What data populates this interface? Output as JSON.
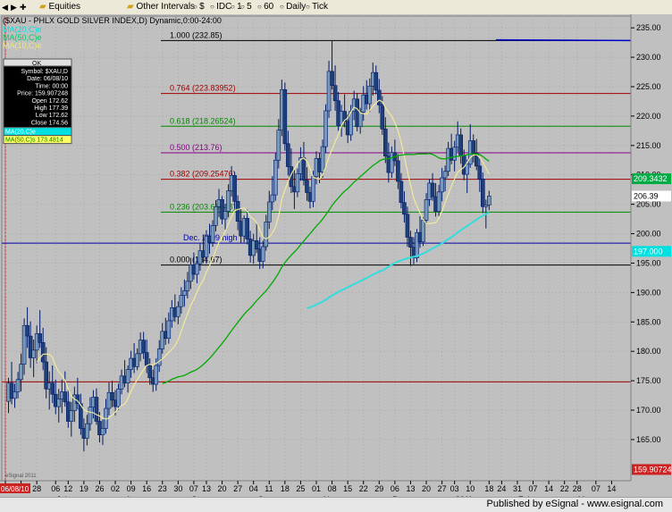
{
  "toolbar": {
    "items": [
      {
        "icon": "folder-icon",
        "label": "Equities"
      },
      {
        "icon": "folder-icon",
        "label": "Other Intervals"
      },
      {
        "icon": "",
        "label": "$"
      },
      {
        "icon": "",
        "label": "IDC"
      },
      {
        "icon": "",
        "label": "1"
      },
      {
        "icon": "",
        "label": "5"
      },
      {
        "icon": "",
        "label": "60"
      },
      {
        "icon": "",
        "label": "Daily"
      },
      {
        "icon": "",
        "label": "Tick"
      }
    ]
  },
  "chart_title": "($XAU - PHLX GOLD SILVER INDEX,D) Dynamic,0:00-24:00",
  "legend": [
    {
      "label": "MA(20,C)e",
      "color": "#00e0e0"
    },
    {
      "label": "MA(50,C)e",
      "color": "#00cc66"
    },
    {
      "label": "MA(10,C)e",
      "color": "#e8e880"
    }
  ],
  "info_box": {
    "header": "OK",
    "rows": [
      "Symbol: $XAU,D",
      "Date: 06/08/10",
      "Time: 00:00",
      "Price: 159.907248",
      "Open 172.62",
      "High 177.39",
      "Low 172.62",
      "Close 174.56"
    ],
    "ma_rows": [
      {
        "label": "MA(20,C)e",
        "color": "#00e0e0"
      },
      {
        "label": "MA(50,C)s 173.4814",
        "color": "#008800"
      }
    ]
  },
  "fib_levels": [
    {
      "label": "1.000 (232.85)",
      "value": 232.85,
      "color": "#000000"
    },
    {
      "label": "0.764 (223.83952)",
      "value": 223.84,
      "color": "#a00000"
    },
    {
      "label": "0.618 (218.26524)",
      "value": 218.27,
      "color": "#008800"
    },
    {
      "label": "0.500 (213.76)",
      "value": 213.76,
      "color": "#880088"
    },
    {
      "label": "0.382 (209.25476)",
      "value": 209.25,
      "color": "#a00000"
    },
    {
      "label": "0.236 (203.68048)",
      "value": 203.68,
      "color": "#008800"
    },
    {
      "label": "Dec. 2009 high",
      "value": 198.4,
      "color": "#0000aa"
    },
    {
      "label": "0.000 (194.67)",
      "value": 194.67,
      "color": "#000000"
    }
  ],
  "ref_line": {
    "value": 174.8,
    "color": "#a00000"
  },
  "right_tags": [
    {
      "label": "209.3432",
      "value": 209.34,
      "bg": "#00aa44",
      "fg": "#ffffff"
    },
    {
      "label": "206.39",
      "value": 206.39,
      "bg": "#ffffff",
      "fg": "#000000"
    },
    {
      "label": "197.000",
      "value": 197.0,
      "bg": "#00e0e0",
      "fg": "#ffffff"
    },
    {
      "label": "159.907248",
      "value": 159.907248,
      "bg": "#cc2222",
      "fg": "#ffffff"
    }
  ],
  "date_tag": "06/08/10",
  "watermark": "eSignal 2011",
  "footer": "Published by eSignal - www.esignal.com",
  "chart_data": {
    "type": "candlestick",
    "title": "$XAU - PHLX GOLD SILVER INDEX",
    "ylim": [
      158,
      237
    ],
    "yticks": [
      165,
      170,
      175,
      180,
      185,
      190,
      195,
      200,
      205,
      210,
      215,
      220,
      225,
      230,
      235
    ],
    "xlim": [
      0,
      198
    ],
    "x_ticks": [
      {
        "label": "14",
        "x": 0
      },
      {
        "label": "21",
        "x": 5
      },
      {
        "label": "28",
        "x": 10
      },
      {
        "label": "06",
        "x": 16
      },
      {
        "label": "12",
        "x": 20
      },
      {
        "label": "19",
        "x": 25
      },
      {
        "label": "26",
        "x": 30
      },
      {
        "label": "02",
        "x": 35
      },
      {
        "label": "09",
        "x": 40
      },
      {
        "label": "16",
        "x": 45
      },
      {
        "label": "23",
        "x": 50
      },
      {
        "label": "30",
        "x": 55
      },
      {
        "label": "07",
        "x": 60
      },
      {
        "label": "13",
        "x": 64
      },
      {
        "label": "20",
        "x": 69
      },
      {
        "label": "27",
        "x": 74
      },
      {
        "label": "04",
        "x": 79
      },
      {
        "label": "11",
        "x": 84
      },
      {
        "label": "18",
        "x": 89
      },
      {
        "label": "25",
        "x": 94
      },
      {
        "label": "01",
        "x": 99
      },
      {
        "label": "08",
        "x": 104
      },
      {
        "label": "15",
        "x": 109
      },
      {
        "label": "22",
        "x": 114
      },
      {
        "label": "29",
        "x": 119
      },
      {
        "label": "06",
        "x": 124
      },
      {
        "label": "13",
        "x": 129
      },
      {
        "label": "20",
        "x": 134
      },
      {
        "label": "27",
        "x": 139
      },
      {
        "label": "03",
        "x": 143
      },
      {
        "label": "10",
        "x": 148
      },
      {
        "label": "18",
        "x": 154
      },
      {
        "label": "24",
        "x": 158
      },
      {
        "label": "31",
        "x": 163
      },
      {
        "label": "07",
        "x": 168
      },
      {
        "label": "14",
        "x": 173
      },
      {
        "label": "22",
        "x": 178
      },
      {
        "label": "28",
        "x": 182
      },
      {
        "label": "07",
        "x": 188
      },
      {
        "label": "14",
        "x": 193
      }
    ],
    "months": [
      {
        "label": "Jul",
        "x": 18
      },
      {
        "label": "Aug",
        "x": 40
      },
      {
        "label": "Sep",
        "x": 61
      },
      {
        "label": "Oct",
        "x": 82
      },
      {
        "label": "Nov",
        "x": 103
      },
      {
        "label": "Dec",
        "x": 125
      },
      {
        "label": "2011",
        "x": 145
      },
      {
        "label": "Feb",
        "x": 165
      },
      {
        "label": "Mar",
        "x": 184
      }
    ],
    "ohlc": [
      [
        171.5,
        175.5,
        169.5,
        174.6
      ],
      [
        174.6,
        178.2,
        171.0,
        172.0
      ],
      [
        172.0,
        174.5,
        170.4,
        173.1
      ],
      [
        173.1,
        176.5,
        172.0,
        175.2
      ],
      [
        175.2,
        179.6,
        173.2,
        177.8
      ],
      [
        177.8,
        185.6,
        176.0,
        184.4
      ],
      [
        184.4,
        187.5,
        180.6,
        182.6
      ],
      [
        182.6,
        185.1,
        177.2,
        178.9
      ],
      [
        178.9,
        182.0,
        175.6,
        180.2
      ],
      [
        180.2,
        184.4,
        178.0,
        183.0
      ],
      [
        183.0,
        187.0,
        180.6,
        181.5
      ],
      [
        181.5,
        184.0,
        176.8,
        178.2
      ],
      [
        178.2,
        180.7,
        172.0,
        173.6
      ],
      [
        173.6,
        176.6,
        170.1,
        174.6
      ],
      [
        174.6,
        177.6,
        171.2,
        172.7
      ],
      [
        172.7,
        175.2,
        169.3,
        170.6
      ],
      [
        170.6,
        173.6,
        167.9,
        171.9
      ],
      [
        171.9,
        175.2,
        169.5,
        173.1
      ],
      [
        173.1,
        176.6,
        170.6,
        171.4
      ],
      [
        171.4,
        173.5,
        167.0,
        168.1
      ],
      [
        168.1,
        171.4,
        165.5,
        169.9
      ],
      [
        169.9,
        174.0,
        168.0,
        172.6
      ],
      [
        172.6,
        175.5,
        170.1,
        171.1
      ],
      [
        171.1,
        172.8,
        165.8,
        166.9
      ],
      [
        166.9,
        168.6,
        163.0,
        165.2
      ],
      [
        165.2,
        169.2,
        164.0,
        167.7
      ],
      [
        167.7,
        172.2,
        166.5,
        170.5
      ],
      [
        170.5,
        173.4,
        168.6,
        172.2
      ],
      [
        172.2,
        173.7,
        167.5,
        168.1
      ],
      [
        168.1,
        169.7,
        164.5,
        165.8
      ],
      [
        165.8,
        168.4,
        164.1,
        166.9
      ],
      [
        166.9,
        171.9,
        166.0,
        170.3
      ],
      [
        170.3,
        174.7,
        169.1,
        173.0
      ],
      [
        173.0,
        175.0,
        170.5,
        171.7
      ],
      [
        171.7,
        173.4,
        169.1,
        170.6
      ],
      [
        170.6,
        174.5,
        170.0,
        173.6
      ],
      [
        173.6,
        176.9,
        172.7,
        175.8
      ],
      [
        175.8,
        178.5,
        173.9,
        174.6
      ],
      [
        174.6,
        177.6,
        173.0,
        176.9
      ],
      [
        176.9,
        180.1,
        175.5,
        178.8
      ],
      [
        178.8,
        181.4,
        176.3,
        177.4
      ],
      [
        177.4,
        180.5,
        176.8,
        179.6
      ],
      [
        179.6,
        183.2,
        178.3,
        181.9
      ],
      [
        181.9,
        183.3,
        178.7,
        179.8
      ],
      [
        179.8,
        182.0,
        176.3,
        177.6
      ],
      [
        177.6,
        178.8,
        174.3,
        175.5
      ],
      [
        175.5,
        176.9,
        173.1,
        174.4
      ],
      [
        174.4,
        178.8,
        173.3,
        177.6
      ],
      [
        177.6,
        181.9,
        176.5,
        180.4
      ],
      [
        180.4,
        184.8,
        179.6,
        183.4
      ],
      [
        183.4,
        185.7,
        181.1,
        182.2
      ],
      [
        182.2,
        186.6,
        181.3,
        185.2
      ],
      [
        185.2,
        188.7,
        184.0,
        187.4
      ],
      [
        187.4,
        189.7,
        185.0,
        185.9
      ],
      [
        185.9,
        188.5,
        184.6,
        187.6
      ],
      [
        187.6,
        190.9,
        186.4,
        189.5
      ],
      [
        189.5,
        192.2,
        187.6,
        190.3
      ],
      [
        190.3,
        193.5,
        189.0,
        191.9
      ],
      [
        191.9,
        195.9,
        190.6,
        194.7
      ],
      [
        194.7,
        196.8,
        192.2,
        193.1
      ],
      [
        193.1,
        196.0,
        191.6,
        194.9
      ],
      [
        194.9,
        198.3,
        193.7,
        197.1
      ],
      [
        197.1,
        199.8,
        195.0,
        196.0
      ],
      [
        196.0,
        200.6,
        194.9,
        199.6
      ],
      [
        199.6,
        201.7,
        196.6,
        198.5
      ],
      [
        198.5,
        202.3,
        197.8,
        201.4
      ],
      [
        201.4,
        205.7,
        200.4,
        204.6
      ],
      [
        204.6,
        207.6,
        202.8,
        205.8
      ],
      [
        205.8,
        206.4,
        201.6,
        202.5
      ],
      [
        202.5,
        205.1,
        200.7,
        203.8
      ],
      [
        203.8,
        208.4,
        202.8,
        207.3
      ],
      [
        207.3,
        211.5,
        206.3,
        209.9
      ],
      [
        209.9,
        210.5,
        204.2,
        205.5
      ],
      [
        205.5,
        206.5,
        200.6,
        202.1
      ],
      [
        202.1,
        204.2,
        198.4,
        199.6
      ],
      [
        199.6,
        203.1,
        198.5,
        202.6
      ],
      [
        202.6,
        204.1,
        198.2,
        199.1
      ],
      [
        199.1,
        200.5,
        195.1,
        196.3
      ],
      [
        196.3,
        200.0,
        194.9,
        198.8
      ],
      [
        198.8,
        201.8,
        196.7,
        197.4
      ],
      [
        197.4,
        199.4,
        194.0,
        195.3
      ],
      [
        195.3,
        198.8,
        194.1,
        197.8
      ],
      [
        197.8,
        203.2,
        197.1,
        202.0
      ],
      [
        202.0,
        207.3,
        200.8,
        205.4
      ],
      [
        205.4,
        209.8,
        204.0,
        206.6
      ],
      [
        206.6,
        213.7,
        205.6,
        212.5
      ],
      [
        212.5,
        219.5,
        211.1,
        217.6
      ],
      [
        217.6,
        226.2,
        216.6,
        224.5
      ],
      [
        224.5,
        225.7,
        214.1,
        215.3
      ],
      [
        215.3,
        217.5,
        209.9,
        211.4
      ],
      [
        211.4,
        214.5,
        206.9,
        208.0
      ],
      [
        208.0,
        210.8,
        204.2,
        207.1
      ],
      [
        207.1,
        211.1,
        206.2,
        210.2
      ],
      [
        210.2,
        214.7,
        209.0,
        212.9
      ],
      [
        212.9,
        215.6,
        208.2,
        209.1
      ],
      [
        209.1,
        211.3,
        205.6,
        207.0
      ],
      [
        207.0,
        208.0,
        204.3,
        205.5
      ],
      [
        205.5,
        210.7,
        204.5,
        209.7
      ],
      [
        209.7,
        214.0,
        208.4,
        212.8
      ],
      [
        212.8,
        213.7,
        208.6,
        210.5
      ],
      [
        210.5,
        216.0,
        209.5,
        214.8
      ],
      [
        214.8,
        222.0,
        213.7,
        220.9
      ],
      [
        220.9,
        229.4,
        219.7,
        227.6
      ],
      [
        227.6,
        232.9,
        224.5,
        225.2
      ],
      [
        225.2,
        228.6,
        220.9,
        222.6
      ],
      [
        222.6,
        224.1,
        217.5,
        218.4
      ],
      [
        218.4,
        221.9,
        216.5,
        220.8
      ],
      [
        220.8,
        223.7,
        218.1,
        219.1
      ],
      [
        219.1,
        220.3,
        215.4,
        216.8
      ],
      [
        216.8,
        221.9,
        215.8,
        220.8
      ],
      [
        220.8,
        224.3,
        219.3,
        222.9
      ],
      [
        222.9,
        223.9,
        217.4,
        218.2
      ],
      [
        218.2,
        221.4,
        217.0,
        220.7
      ],
      [
        220.7,
        225.1,
        219.2,
        223.6
      ],
      [
        223.6,
        226.1,
        221.1,
        222.1
      ],
      [
        222.1,
        226.4,
        220.7,
        225.1
      ],
      [
        225.1,
        229.1,
        223.5,
        227.4
      ],
      [
        227.4,
        228.6,
        223.7,
        224.4
      ],
      [
        224.4,
        226.3,
        220.5,
        221.9
      ],
      [
        221.9,
        223.4,
        216.8,
        217.8
      ],
      [
        217.8,
        219.8,
        212.0,
        213.2
      ],
      [
        213.2,
        215.5,
        208.7,
        210.4
      ],
      [
        210.4,
        214.8,
        209.5,
        213.8
      ],
      [
        213.8,
        216.0,
        211.5,
        212.4
      ],
      [
        212.4,
        213.5,
        207.6,
        208.9
      ],
      [
        208.9,
        210.3,
        204.3,
        205.3
      ],
      [
        205.3,
        207.2,
        201.9,
        203.3
      ],
      [
        203.3,
        204.6,
        197.8,
        199.4
      ],
      [
        199.4,
        200.5,
        194.5,
        197.7
      ],
      [
        197.7,
        199.4,
        194.8,
        195.9
      ],
      [
        195.9,
        200.8,
        195.2,
        200.2
      ],
      [
        200.2,
        203.0,
        197.6,
        198.6
      ],
      [
        198.6,
        202.8,
        197.9,
        202.3
      ],
      [
        202.3,
        206.9,
        201.7,
        205.8
      ],
      [
        205.8,
        209.3,
        204.7,
        208.6
      ],
      [
        208.6,
        210.3,
        205.6,
        206.3
      ],
      [
        206.3,
        208.6,
        202.9,
        203.8
      ],
      [
        203.8,
        208.3,
        203.0,
        207.1
      ],
      [
        207.1,
        211.2,
        205.5,
        209.5
      ],
      [
        209.5,
        211.6,
        207.2,
        210.6
      ],
      [
        210.6,
        215.6,
        209.8,
        214.5
      ],
      [
        214.5,
        217.0,
        211.8,
        212.5
      ],
      [
        212.5,
        215.8,
        210.6,
        214.7
      ],
      [
        214.7,
        219.1,
        213.9,
        216.8
      ],
      [
        216.8,
        217.9,
        211.9,
        213.2
      ],
      [
        213.2,
        214.3,
        209.1,
        210.1
      ],
      [
        210.1,
        212.6,
        206.9,
        211.8
      ],
      [
        211.8,
        218.6,
        211.2,
        215.8
      ],
      [
        215.8,
        216.9,
        212.1,
        213.7
      ],
      [
        213.7,
        216.1,
        210.8,
        211.5
      ],
      [
        211.5,
        212.8,
        207.1,
        209.3
      ],
      [
        209.3,
        210.4,
        203.5,
        204.6
      ],
      [
        204.6,
        205.8,
        200.9,
        204.9
      ],
      [
        204.9,
        207.3,
        204.0,
        206.39
      ]
    ],
    "closes": [],
    "ma10": [],
    "ma50": [],
    "ma200": []
  }
}
